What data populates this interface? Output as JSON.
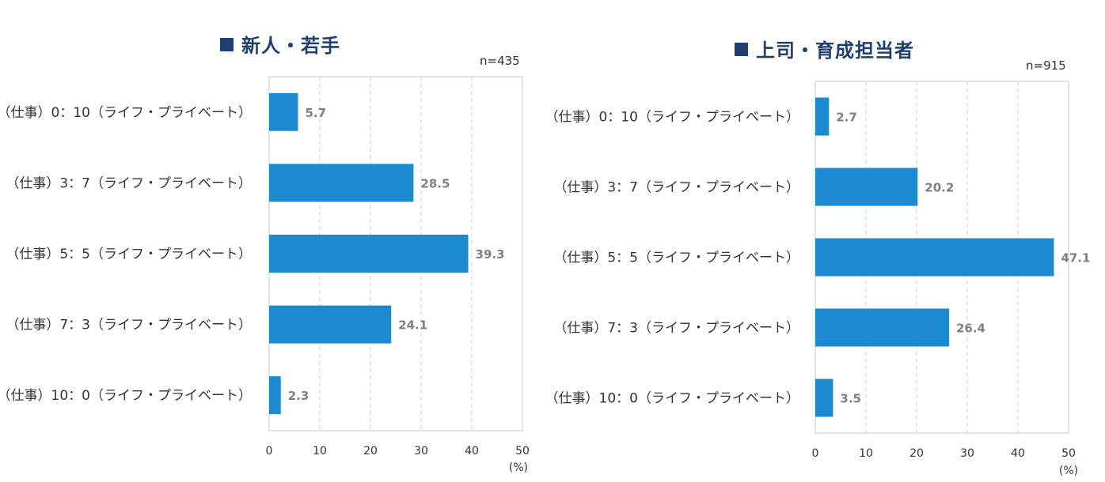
{
  "chart_data": [
    {
      "type": "bar",
      "orientation": "horizontal",
      "title": "新人・若手",
      "sample_size": "n=435",
      "categories": [
        "（仕事）0：10（ライフ・プライベート）",
        "（仕事）3：7（ライフ・プライベート）",
        "（仕事）5：5（ライフ・プライベート）",
        "（仕事）7：3（ライフ・プライベート）",
        "（仕事）10：0（ライフ・プライベート）"
      ],
      "values": [
        5.7,
        28.5,
        39.3,
        24.1,
        2.3
      ],
      "value_labels": [
        "5.7",
        "28.5",
        "39.3",
        "24.1",
        "2.3"
      ],
      "xlim": [
        0,
        50
      ],
      "xticks": [
        "0",
        "10",
        "20",
        "30",
        "40",
        "50"
      ],
      "unit_label": "(%)",
      "grid": "vertical dashed",
      "bar_color": "#1c8ad0"
    },
    {
      "type": "bar",
      "orientation": "horizontal",
      "title": "上司・育成担当者",
      "sample_size": "n=915",
      "categories": [
        "（仕事）0：10（ライフ・プライベート）",
        "（仕事）3：7（ライフ・プライベート）",
        "（仕事）5：5（ライフ・プライベート）",
        "（仕事）7：3（ライフ・プライベート）",
        "（仕事）10：0（ライフ・プライベート）"
      ],
      "values": [
        2.7,
        20.2,
        47.1,
        26.4,
        3.5
      ],
      "value_labels": [
        "2.7",
        "20.2",
        "47.1",
        "26.4",
        "3.5"
      ],
      "xlim": [
        0,
        50
      ],
      "xticks": [
        "0",
        "10",
        "20",
        "30",
        "40",
        "50"
      ],
      "unit_label": "(%)",
      "grid": "vertical dashed",
      "bar_color": "#1c8ad0"
    }
  ]
}
